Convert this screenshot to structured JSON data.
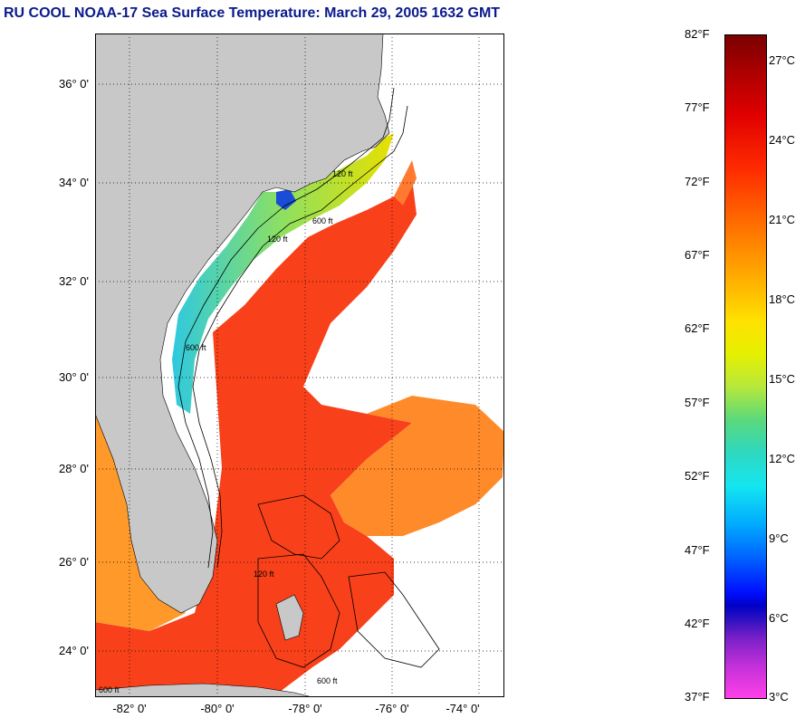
{
  "title": "RU COOL  NOAA-17  Sea Surface Temperature:  March 29, 2005 1632 GMT",
  "map": {
    "lat_labels": [
      "36° 0'",
      "34° 0'",
      "32° 0'",
      "30° 0'",
      "28° 0'",
      "26° 0'",
      "24° 0'"
    ],
    "lon_labels": [
      "-82° 0'",
      "-80° 0'",
      "-78° 0'",
      "-76° 0'",
      "-74° 0'"
    ],
    "contour_labels": [
      "120 ft",
      "600 ft",
      "120 ft",
      "600 ft",
      "120 ft",
      "600 ft",
      "600 ft"
    ],
    "land_color": "#c8c8c8",
    "grid": "dotted"
  },
  "colorbar": {
    "fahrenheit": [
      "82°F",
      "77°F",
      "72°F",
      "67°F",
      "62°F",
      "57°F",
      "52°F",
      "47°F",
      "42°F",
      "37°F"
    ],
    "celsius": [
      "27°C",
      "24°C",
      "21°C",
      "18°C",
      "15°C",
      "12°C",
      "9°C",
      "6°C",
      "3°C"
    ],
    "range_f": [
      37,
      82
    ],
    "range_c": [
      3,
      27.8
    ]
  }
}
